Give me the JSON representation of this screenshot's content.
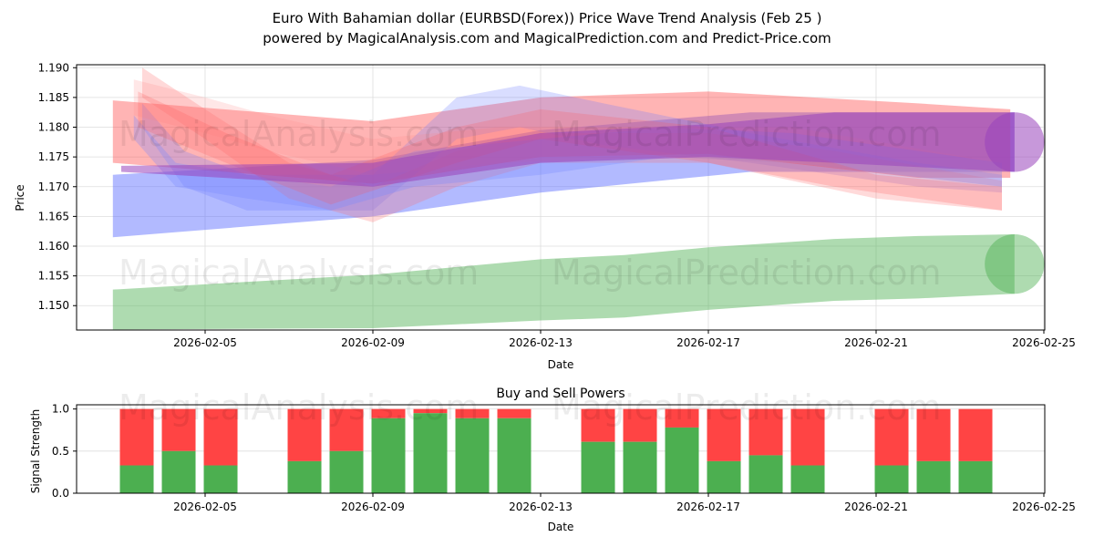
{
  "title_line1": "Euro With Bahamian dollar (EURBSD(Forex)) Price Wave Trend Analysis (Feb 25 )",
  "title_line2": "powered by MagicalAnalysis.com and MagicalPrediction.com and Predict-Price.com",
  "watermarks": [
    "MagicalAnalysis.com",
    "MagicalPrediction.com"
  ],
  "chart_data": [
    {
      "type": "area",
      "title": "",
      "xlabel": "Date",
      "ylabel": "Price",
      "ylim": [
        1.1459,
        1.1905
      ],
      "xlim_feb_day": [
        2.3,
        25.4
      ],
      "yticks": [
        "1.150",
        "1.155",
        "1.160",
        "1.165",
        "1.170",
        "1.175",
        "1.180",
        "1.185",
        "1.190"
      ],
      "xticks": [
        {
          "day": 5,
          "label": "2026-02-05"
        },
        {
          "day": 9,
          "label": "2026-02-09"
        },
        {
          "day": 13,
          "label": "2026-02-13"
        },
        {
          "day": 17,
          "label": "2026-02-17"
        },
        {
          "day": 21,
          "label": "2026-02-21"
        },
        {
          "day": 25,
          "label": "2026-02-25"
        }
      ],
      "grid": true,
      "bands": [
        {
          "name": "green-forecast",
          "color": "#4caf50",
          "opacity": 0.45,
          "cap": true,
          "pts": [
            [
              2.8,
              1.1527,
              1.146
            ],
            [
              9,
              1.1552,
              1.1462
            ],
            [
              13,
              1.1578,
              1.1475
            ],
            [
              15,
              1.1585,
              1.148
            ],
            [
              17,
              1.1598,
              1.1493
            ],
            [
              20,
              1.1612,
              1.1508
            ],
            [
              22,
              1.1617,
              1.1512
            ],
            [
              24.3,
              1.162,
              1.152
            ]
          ]
        },
        {
          "name": "blue-trend",
          "color": "#5566ff",
          "opacity": 0.45,
          "cap": false,
          "pts": [
            [
              2.8,
              1.172,
              1.1615
            ],
            [
              9,
              1.1745,
              1.165
            ],
            [
              13,
              1.1795,
              1.169
            ],
            [
              18,
              1.1825,
              1.1725
            ],
            [
              24.3,
              1.1825,
              1.1725
            ]
          ]
        },
        {
          "name": "red-trend",
          "color": "#ff4444",
          "opacity": 0.4,
          "cap": false,
          "pts": [
            [
              2.8,
              1.1845,
              1.174
            ],
            [
              9,
              1.181,
              1.1705
            ],
            [
              13,
              1.185,
              1.175
            ],
            [
              17,
              1.186,
              1.1755
            ],
            [
              22,
              1.184,
              1.1715
            ],
            [
              24.2,
              1.183,
              1.1715
            ]
          ]
        },
        {
          "name": "blue-wave-1",
          "color": "#6677ff",
          "opacity": 0.25,
          "cap": false,
          "pts": [
            [
              3.5,
              1.184,
              1.18
            ],
            [
              4.5,
              1.176,
              1.17
            ],
            [
              6,
              1.172,
              1.166
            ],
            [
              9,
              1.172,
              1.166
            ],
            [
              11,
              1.185,
              1.178
            ],
            [
              12.5,
              1.187,
              1.18
            ],
            [
              14.5,
              1.184,
              1.177
            ],
            [
              18,
              1.179,
              1.174
            ],
            [
              22,
              1.174,
              1.17
            ],
            [
              24,
              1.172,
              1.169
            ]
          ]
        },
        {
          "name": "red-wave-1",
          "color": "#ff6666",
          "opacity": 0.25,
          "cap": false,
          "pts": [
            [
              3.5,
              1.19,
              1.185
            ],
            [
              5,
              1.183,
              1.178
            ],
            [
              7,
              1.174,
              1.168
            ],
            [
              9,
              1.17,
              1.164
            ],
            [
              11,
              1.176,
              1.17
            ],
            [
              13,
              1.179,
              1.174
            ],
            [
              17,
              1.179,
              1.174
            ],
            [
              20,
              1.176,
              1.17
            ],
            [
              24,
              1.171,
              1.166
            ]
          ]
        },
        {
          "name": "pink-wave",
          "color": "#ff8888",
          "opacity": 0.2,
          "cap": false,
          "pts": [
            [
              3.3,
              1.188,
              1.182
            ],
            [
              5,
              1.185,
              1.179
            ],
            [
              6.5,
              1.182,
              1.176
            ],
            [
              9,
              1.178,
              1.172
            ],
            [
              12,
              1.18,
              1.174
            ],
            [
              16,
              1.18,
              1.175
            ],
            [
              19,
              1.18,
              1.174
            ],
            [
              24,
              1.174,
              1.17
            ]
          ]
        },
        {
          "name": "blue-wave-2",
          "color": "#7788ff",
          "opacity": 0.3,
          "cap": false,
          "pts": [
            [
              3.3,
              1.182,
              1.178
            ],
            [
              4.3,
              1.174,
              1.17
            ],
            [
              6,
              1.172,
              1.168
            ],
            [
              8,
              1.17,
              1.166
            ],
            [
              10,
              1.176,
              1.17
            ],
            [
              13,
              1.178,
              1.172
            ],
            [
              16,
              1.18,
              1.175
            ],
            [
              19,
              1.179,
              1.174
            ],
            [
              24,
              1.174,
              1.17
            ]
          ]
        },
        {
          "name": "red-wave-2",
          "color": "#ff5555",
          "opacity": 0.22,
          "cap": false,
          "pts": [
            [
              3.4,
              1.186,
              1.18
            ],
            [
              5.5,
              1.179,
              1.174
            ],
            [
              8,
              1.172,
              1.167
            ],
            [
              11,
              1.18,
              1.174
            ],
            [
              13,
              1.183,
              1.178
            ],
            [
              17,
              1.18,
              1.174
            ],
            [
              21,
              1.172,
              1.168
            ],
            [
              24,
              1.17,
              1.166
            ]
          ]
        },
        {
          "name": "purple-trend",
          "color": "#9944bb",
          "opacity": 0.55,
          "cap": true,
          "pts": [
            [
              3,
              1.1735,
              1.1725
            ],
            [
              9,
              1.174,
              1.17
            ],
            [
              13,
              1.179,
              1.174
            ],
            [
              17,
              1.1805,
              1.175
            ],
            [
              20,
              1.1825,
              1.174
            ],
            [
              24.3,
              1.1825,
              1.1725
            ]
          ]
        }
      ]
    },
    {
      "type": "bar",
      "title": "Buy and Sell Powers",
      "xlabel": "Date",
      "ylabel": "Signal Strength",
      "ylim": [
        0,
        1.05
      ],
      "yticks": [
        "0.0",
        "0.5",
        "1.0"
      ],
      "xticks": [
        {
          "day": 5,
          "label": "2026-02-05"
        },
        {
          "day": 9,
          "label": "2026-02-09"
        },
        {
          "day": 13,
          "label": "2026-02-13"
        },
        {
          "day": 17,
          "label": "2026-02-17"
        },
        {
          "day": 21,
          "label": "2026-02-21"
        },
        {
          "day": 25,
          "label": "2026-02-25"
        }
      ],
      "colors": {
        "buy": "#4caf50",
        "sell": "#ff4444"
      },
      "days": [
        3,
        4,
        5,
        7,
        8,
        9,
        10,
        11,
        12,
        14,
        15,
        16,
        17,
        18,
        19,
        21,
        22,
        23
      ],
      "buy": [
        0.33,
        0.5,
        0.33,
        0.38,
        0.5,
        0.89,
        0.95,
        0.89,
        0.89,
        0.61,
        0.61,
        0.78,
        0.38,
        0.45,
        0.33,
        0.33,
        0.38,
        0.38
      ],
      "sell_total": 1.0
    }
  ]
}
